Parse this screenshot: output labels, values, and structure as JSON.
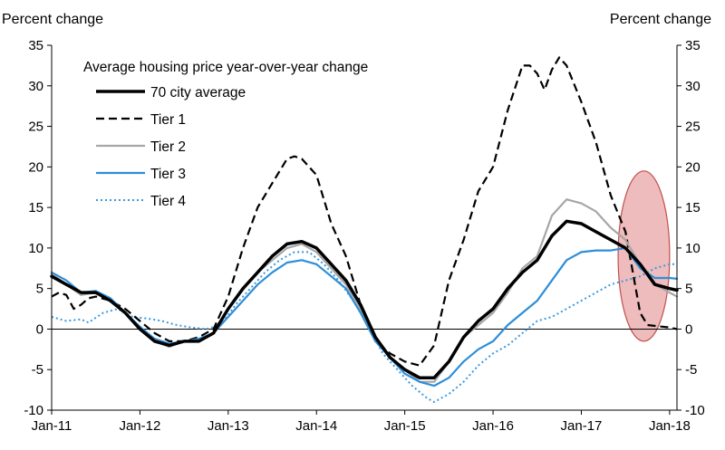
{
  "chart_data": {
    "type": "line",
    "y_left_label": "Percent change",
    "y_right_label": "Percent change",
    "legend_title": "Average housing price year-over-year change",
    "ylim": [
      -10,
      35
    ],
    "yticks": [
      -10,
      -5,
      0,
      5,
      10,
      15,
      20,
      25,
      30,
      35
    ],
    "xlim": [
      "2011-01",
      "2018-02"
    ],
    "xticks": [
      "Jan-11",
      "Jan-12",
      "Jan-13",
      "Jan-14",
      "Jan-15",
      "Jan-16",
      "Jan-17",
      "Jan-18"
    ],
    "legend_position": "top-left",
    "colors": {
      "city70": "#000000",
      "tier1": "#000000",
      "tier2": "#a6a6a6",
      "tier3": "#2e8ed8",
      "tier4": "#3a98e0",
      "highlight_fill": "#e8a6a6",
      "highlight_stroke": "#c0504d"
    },
    "annotation": {
      "type": "ellipse-highlight",
      "x_range": [
        "2017-06",
        "2018-01"
      ],
      "y_range": [
        -1.5,
        19.5
      ]
    },
    "series": [
      {
        "name": "70 city average",
        "key": "city70",
        "style": "solid-thick",
        "points": [
          [
            "2011-01",
            6.5
          ],
          [
            "2011-03",
            5.5
          ],
          [
            "2011-05",
            4.5
          ],
          [
            "2011-07",
            4.5
          ],
          [
            "2011-09",
            3.5
          ],
          [
            "2011-11",
            2.0
          ],
          [
            "2012-01",
            0.0
          ],
          [
            "2012-03",
            -1.5
          ],
          [
            "2012-05",
            -2.0
          ],
          [
            "2012-07",
            -1.5
          ],
          [
            "2012-09",
            -1.5
          ],
          [
            "2012-11",
            -0.5
          ],
          [
            "2013-01",
            2.5
          ],
          [
            "2013-03",
            5.0
          ],
          [
            "2013-05",
            7.0
          ],
          [
            "2013-07",
            9.0
          ],
          [
            "2013-09",
            10.5
          ],
          [
            "2013-11",
            10.8
          ],
          [
            "2014-01",
            10.0
          ],
          [
            "2014-03",
            8.0
          ],
          [
            "2014-05",
            6.0
          ],
          [
            "2014-07",
            3.0
          ],
          [
            "2014-09",
            -1.0
          ],
          [
            "2014-11",
            -3.5
          ],
          [
            "2015-01",
            -5.0
          ],
          [
            "2015-03",
            -6.0
          ],
          [
            "2015-05",
            -6.0
          ],
          [
            "2015-07",
            -4.0
          ],
          [
            "2015-09",
            -1.0
          ],
          [
            "2015-11",
            1.0
          ],
          [
            "2016-01",
            2.5
          ],
          [
            "2016-03",
            5.0
          ],
          [
            "2016-05",
            7.0
          ],
          [
            "2016-07",
            8.5
          ],
          [
            "2016-09",
            11.5
          ],
          [
            "2016-11",
            13.3
          ],
          [
            "2017-01",
            13.0
          ],
          [
            "2017-03",
            12.0
          ],
          [
            "2017-05",
            11.0
          ],
          [
            "2017-07",
            10.0
          ],
          [
            "2017-09",
            8.0
          ],
          [
            "2017-11",
            5.5
          ],
          [
            "2018-01",
            5.0
          ],
          [
            "2018-02",
            4.8
          ]
        ]
      },
      {
        "name": "Tier 1",
        "key": "tier1",
        "style": "dashed",
        "points": [
          [
            "2011-01",
            4.0
          ],
          [
            "2011-02",
            4.5
          ],
          [
            "2011-03",
            4.2
          ],
          [
            "2011-04",
            2.5
          ],
          [
            "2011-05",
            3.0
          ],
          [
            "2011-06",
            3.8
          ],
          [
            "2011-07",
            4.0
          ],
          [
            "2011-09",
            3.5
          ],
          [
            "2011-11",
            2.5
          ],
          [
            "2012-01",
            1.0
          ],
          [
            "2012-03",
            -0.5
          ],
          [
            "2012-05",
            -1.5
          ],
          [
            "2012-07",
            -1.5
          ],
          [
            "2012-09",
            -1.0
          ],
          [
            "2012-11",
            0.0
          ],
          [
            "2013-01",
            4.0
          ],
          [
            "2013-03",
            10.0
          ],
          [
            "2013-05",
            15.0
          ],
          [
            "2013-07",
            18.0
          ],
          [
            "2013-09",
            21.0
          ],
          [
            "2013-10",
            21.3
          ],
          [
            "2013-11",
            21.0
          ],
          [
            "2014-01",
            19.0
          ],
          [
            "2014-03",
            13.0
          ],
          [
            "2014-05",
            9.0
          ],
          [
            "2014-07",
            3.0
          ],
          [
            "2014-09",
            -1.5
          ],
          [
            "2014-11",
            -3.0
          ],
          [
            "2015-01",
            -4.0
          ],
          [
            "2015-03",
            -4.5
          ],
          [
            "2015-05",
            -2.0
          ],
          [
            "2015-07",
            6.0
          ],
          [
            "2015-09",
            11.0
          ],
          [
            "2015-11",
            17.0
          ],
          [
            "2016-01",
            20.0
          ],
          [
            "2016-03",
            27.0
          ],
          [
            "2016-05",
            32.5
          ],
          [
            "2016-06",
            32.5
          ],
          [
            "2016-07",
            31.5
          ],
          [
            "2016-08",
            29.5
          ],
          [
            "2016-09",
            32.0
          ],
          [
            "2016-10",
            33.5
          ],
          [
            "2016-11",
            32.5
          ],
          [
            "2017-01",
            28.0
          ],
          [
            "2017-03",
            23.0
          ],
          [
            "2017-05",
            16.5
          ],
          [
            "2017-07",
            12.0
          ],
          [
            "2017-08",
            7.0
          ],
          [
            "2017-09",
            2.0
          ],
          [
            "2017-10",
            0.5
          ],
          [
            "2017-12",
            0.3
          ],
          [
            "2018-01",
            0.2
          ],
          [
            "2018-02",
            0.0
          ]
        ]
      },
      {
        "name": "Tier 2",
        "key": "tier2",
        "style": "solid",
        "points": [
          [
            "2011-01",
            6.8
          ],
          [
            "2011-03",
            5.5
          ],
          [
            "2011-05",
            4.2
          ],
          [
            "2011-07",
            4.5
          ],
          [
            "2011-09",
            3.5
          ],
          [
            "2011-11",
            2.0
          ],
          [
            "2012-01",
            0.2
          ],
          [
            "2012-03",
            -1.5
          ],
          [
            "2012-05",
            -2.2
          ],
          [
            "2012-07",
            -1.5
          ],
          [
            "2012-09",
            -1.5
          ],
          [
            "2012-11",
            -0.5
          ],
          [
            "2013-01",
            2.5
          ],
          [
            "2013-03",
            5.0
          ],
          [
            "2013-05",
            7.0
          ],
          [
            "2013-07",
            8.5
          ],
          [
            "2013-09",
            10.0
          ],
          [
            "2013-11",
            10.5
          ],
          [
            "2014-01",
            9.5
          ],
          [
            "2014-03",
            7.5
          ],
          [
            "2014-05",
            5.5
          ],
          [
            "2014-07",
            2.5
          ],
          [
            "2014-09",
            -1.5
          ],
          [
            "2014-11",
            -3.5
          ],
          [
            "2015-01",
            -5.0
          ],
          [
            "2015-03",
            -6.5
          ],
          [
            "2015-05",
            -6.5
          ],
          [
            "2015-07",
            -4.0
          ],
          [
            "2015-09",
            -1.0
          ],
          [
            "2015-11",
            0.5
          ],
          [
            "2016-01",
            2.0
          ],
          [
            "2016-03",
            4.5
          ],
          [
            "2016-05",
            7.5
          ],
          [
            "2016-07",
            9.0
          ],
          [
            "2016-09",
            14.0
          ],
          [
            "2016-11",
            16.0
          ],
          [
            "2017-01",
            15.5
          ],
          [
            "2017-03",
            14.5
          ],
          [
            "2017-05",
            12.5
          ],
          [
            "2017-07",
            11.0
          ],
          [
            "2017-09",
            8.0
          ],
          [
            "2017-11",
            5.5
          ],
          [
            "2018-01",
            4.5
          ],
          [
            "2018-02",
            4.0
          ]
        ]
      },
      {
        "name": "Tier 3",
        "key": "tier3",
        "style": "solid",
        "points": [
          [
            "2011-01",
            7.0
          ],
          [
            "2011-03",
            6.0
          ],
          [
            "2011-05",
            4.5
          ],
          [
            "2011-07",
            4.7
          ],
          [
            "2011-09",
            3.8
          ],
          [
            "2011-11",
            2.0
          ],
          [
            "2012-01",
            0.3
          ],
          [
            "2012-03",
            -1.2
          ],
          [
            "2012-05",
            -1.8
          ],
          [
            "2012-07",
            -1.5
          ],
          [
            "2012-09",
            -1.2
          ],
          [
            "2012-11",
            -0.5
          ],
          [
            "2013-01",
            1.5
          ],
          [
            "2013-03",
            3.5
          ],
          [
            "2013-05",
            5.5
          ],
          [
            "2013-07",
            7.0
          ],
          [
            "2013-09",
            8.2
          ],
          [
            "2013-11",
            8.5
          ],
          [
            "2014-01",
            8.0
          ],
          [
            "2014-03",
            6.5
          ],
          [
            "2014-05",
            5.0
          ],
          [
            "2014-07",
            2.0
          ],
          [
            "2014-09",
            -1.5
          ],
          [
            "2014-11",
            -3.5
          ],
          [
            "2015-01",
            -5.5
          ],
          [
            "2015-03",
            -6.5
          ],
          [
            "2015-05",
            -7.0
          ],
          [
            "2015-07",
            -6.0
          ],
          [
            "2015-09",
            -4.0
          ],
          [
            "2015-11",
            -2.5
          ],
          [
            "2016-01",
            -1.5
          ],
          [
            "2016-03",
            0.5
          ],
          [
            "2016-05",
            2.0
          ],
          [
            "2016-07",
            3.5
          ],
          [
            "2016-09",
            6.0
          ],
          [
            "2016-11",
            8.5
          ],
          [
            "2017-01",
            9.5
          ],
          [
            "2017-03",
            9.7
          ],
          [
            "2017-05",
            9.7
          ],
          [
            "2017-07",
            10.0
          ],
          [
            "2017-09",
            7.5
          ],
          [
            "2017-11",
            6.3
          ],
          [
            "2018-01",
            6.3
          ],
          [
            "2018-02",
            6.2
          ]
        ]
      },
      {
        "name": "Tier 4",
        "key": "tier4",
        "style": "dotted",
        "points": [
          [
            "2011-01",
            1.5
          ],
          [
            "2011-03",
            1.0
          ],
          [
            "2011-05",
            1.2
          ],
          [
            "2011-06",
            0.8
          ],
          [
            "2011-08",
            2.0
          ],
          [
            "2011-10",
            2.5
          ],
          [
            "2011-12",
            1.5
          ],
          [
            "2012-02",
            1.3
          ],
          [
            "2012-04",
            1.0
          ],
          [
            "2012-06",
            0.5
          ],
          [
            "2012-08",
            0.2
          ],
          [
            "2012-10",
            0.0
          ],
          [
            "2012-12",
            0.5
          ],
          [
            "2013-02",
            3.0
          ],
          [
            "2013-04",
            5.0
          ],
          [
            "2013-06",
            7.0
          ],
          [
            "2013-08",
            8.5
          ],
          [
            "2013-10",
            9.5
          ],
          [
            "2013-12",
            9.5
          ],
          [
            "2014-02",
            8.0
          ],
          [
            "2014-04",
            6.0
          ],
          [
            "2014-06",
            3.5
          ],
          [
            "2014-08",
            0.5
          ],
          [
            "2014-10",
            -3.0
          ],
          [
            "2014-12",
            -5.0
          ],
          [
            "2015-02",
            -7.0
          ],
          [
            "2015-04",
            -8.5
          ],
          [
            "2015-05",
            -9.0
          ],
          [
            "2015-07",
            -8.0
          ],
          [
            "2015-09",
            -6.5
          ],
          [
            "2015-11",
            -4.5
          ],
          [
            "2016-01",
            -3.0
          ],
          [
            "2016-03",
            -2.0
          ],
          [
            "2016-05",
            -0.5
          ],
          [
            "2016-07",
            1.0
          ],
          [
            "2016-09",
            1.5
          ],
          [
            "2016-11",
            2.5
          ],
          [
            "2017-01",
            3.5
          ],
          [
            "2017-03",
            4.5
          ],
          [
            "2017-05",
            5.5
          ],
          [
            "2017-07",
            6.0
          ],
          [
            "2017-09",
            6.5
          ],
          [
            "2017-11",
            7.5
          ],
          [
            "2018-01",
            8.0
          ],
          [
            "2018-02",
            8.0
          ]
        ]
      }
    ]
  }
}
